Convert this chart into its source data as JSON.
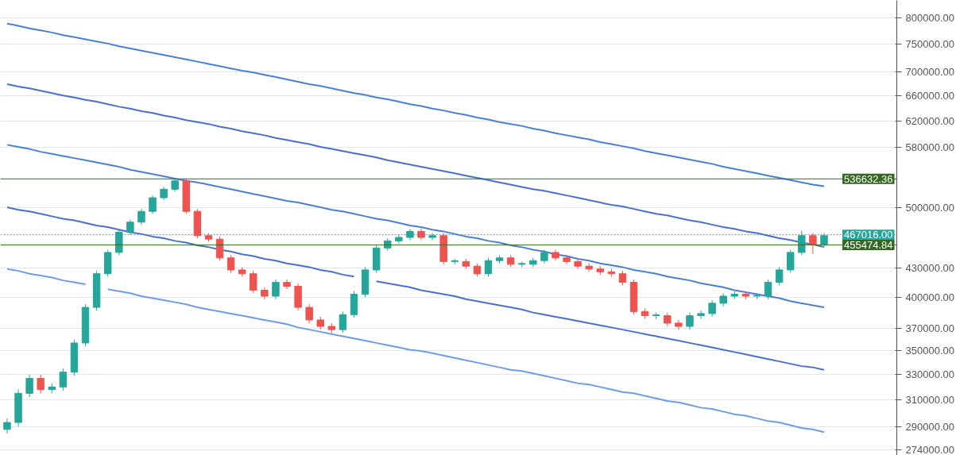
{
  "chart_data": {
    "type": "candlestick",
    "categories": [
      null,
      null,
      null,
      null,
      null,
      null,
      null,
      null,
      null,
      null,
      null,
      null,
      null,
      null,
      null,
      null,
      null,
      null,
      null,
      null,
      null,
      null,
      null,
      null,
      null,
      null,
      null,
      null,
      null,
      null,
      null,
      null,
      null,
      null,
      null,
      null,
      null,
      null,
      null,
      null,
      null,
      null,
      null,
      null,
      null,
      null,
      null,
      null,
      null,
      null,
      null,
      null,
      null,
      null,
      null,
      null,
      null,
      null,
      null,
      null,
      null,
      null,
      null,
      null,
      null,
      null,
      null,
      null,
      null,
      null,
      null,
      null,
      null,
      null
    ],
    "ohlc": [
      [
        288000,
        296000,
        285000,
        293000
      ],
      [
        293000,
        318000,
        290000,
        315000
      ],
      [
        315000,
        330000,
        312000,
        327000
      ],
      [
        327000,
        330000,
        315000,
        318000
      ],
      [
        318000,
        323000,
        315000,
        320000
      ],
      [
        320000,
        335000,
        317000,
        332000
      ],
      [
        332000,
        360000,
        329000,
        357000
      ],
      [
        357000,
        393000,
        354000,
        390000
      ],
      [
        390000,
        427000,
        387000,
        424000
      ],
      [
        424000,
        450000,
        421000,
        447000
      ],
      [
        447000,
        473000,
        444000,
        470000
      ],
      [
        470000,
        485000,
        467000,
        482000
      ],
      [
        482000,
        498000,
        479000,
        495000
      ],
      [
        495000,
        515000,
        492000,
        512000
      ],
      [
        512000,
        526000,
        509000,
        523000
      ],
      [
        523000,
        537000,
        520000,
        534000
      ],
      [
        534000,
        537000,
        492000,
        495000
      ],
      [
        495000,
        498000,
        463000,
        466000
      ],
      [
        466000,
        469000,
        459000,
        462000
      ],
      [
        462000,
        465000,
        438000,
        441000
      ],
      [
        441000,
        444000,
        425000,
        428000
      ],
      [
        428000,
        431000,
        421000,
        424000
      ],
      [
        424000,
        427000,
        404000,
        407000
      ],
      [
        407000,
        410000,
        398000,
        401000
      ],
      [
        401000,
        418000,
        398000,
        415000
      ],
      [
        415000,
        418000,
        408000,
        411000
      ],
      [
        411000,
        414000,
        387000,
        390000
      ],
      [
        390000,
        393000,
        375000,
        378000
      ],
      [
        378000,
        381000,
        369000,
        372000
      ],
      [
        372000,
        375000,
        366000,
        369000
      ],
      [
        369000,
        386000,
        366000,
        383000
      ],
      [
        383000,
        406000,
        380000,
        403000
      ],
      [
        403000,
        431000,
        400000,
        428000
      ],
      [
        428000,
        455000,
        425000,
        452000
      ],
      [
        452000,
        463000,
        449000,
        460000
      ],
      [
        460000,
        467000,
        457000,
        464000
      ],
      [
        464000,
        474000,
        461000,
        471000
      ],
      [
        471000,
        474000,
        461000,
        464000
      ],
      [
        464000,
        469000,
        461000,
        466000
      ],
      [
        466000,
        469000,
        434000,
        437000
      ],
      [
        437000,
        440000,
        434000,
        437000
      ],
      [
        437000,
        440000,
        429000,
        432000
      ],
      [
        432000,
        435000,
        421000,
        424000
      ],
      [
        424000,
        441000,
        421000,
        438000
      ],
      [
        438000,
        444000,
        435000,
        441000
      ],
      [
        441000,
        444000,
        431000,
        434000
      ],
      [
        434000,
        437000,
        431000,
        434000
      ],
      [
        434000,
        441000,
        431000,
        438000
      ],
      [
        438000,
        450000,
        435000,
        447000
      ],
      [
        447000,
        450000,
        438000,
        441000
      ],
      [
        441000,
        444000,
        434000,
        437000
      ],
      [
        437000,
        440000,
        429000,
        432000
      ],
      [
        432000,
        435000,
        426000,
        429000
      ],
      [
        429000,
        432000,
        423000,
        426000
      ],
      [
        426000,
        429000,
        421000,
        424000
      ],
      [
        424000,
        427000,
        412000,
        415000
      ],
      [
        415000,
        418000,
        383000,
        386000
      ],
      [
        386000,
        389000,
        379000,
        382000
      ],
      [
        382000,
        385000,
        379000,
        382000
      ],
      [
        382000,
        385000,
        372000,
        375000
      ],
      [
        375000,
        378000,
        369000,
        372000
      ],
      [
        372000,
        385000,
        369000,
        382000
      ],
      [
        382000,
        387000,
        379000,
        384000
      ],
      [
        384000,
        397000,
        381000,
        394000
      ],
      [
        394000,
        404000,
        391000,
        401000
      ],
      [
        401000,
        406000,
        398000,
        403000
      ],
      [
        403000,
        406000,
        398000,
        401000
      ],
      [
        401000,
        404000,
        398000,
        401000
      ],
      [
        401000,
        418000,
        398000,
        415000
      ],
      [
        415000,
        431000,
        412000,
        428000
      ],
      [
        428000,
        450000,
        425000,
        447000
      ],
      [
        447000,
        472000,
        444000,
        466000
      ],
      [
        466000,
        469000,
        445000,
        456000
      ],
      [
        456000,
        469000,
        453000,
        466000
      ]
    ],
    "colors": [
      "#26a69a",
      "#26a69a",
      "#26a69a",
      "#ef5350",
      "#26a69a",
      "#26a69a",
      "#26a69a",
      "#26a69a",
      "#26a69a",
      "#26a69a",
      "#26a69a",
      "#26a69a",
      "#26a69a",
      "#26a69a",
      "#26a69a",
      "#26a69a",
      "#ef5350",
      "#ef5350",
      "#ef5350",
      "#ef5350",
      "#ef5350",
      "#ef5350",
      "#ef5350",
      "#ef5350",
      "#26a69a",
      "#ef5350",
      "#ef5350",
      "#ef5350",
      "#ef5350",
      "#ef5350",
      "#26a69a",
      "#26a69a",
      "#26a69a",
      "#26a69a",
      "#26a69a",
      "#26a69a",
      "#26a69a",
      "#ef5350",
      "#26a69a",
      "#ef5350",
      "#26a69a",
      "#ef5350",
      "#ef5350",
      "#26a69a",
      "#26a69a",
      "#ef5350",
      "#26a69a",
      "#26a69a",
      "#26a69a",
      "#ef5350",
      "#ef5350",
      "#ef5350",
      "#ef5350",
      "#ef5350",
      "#ef5350",
      "#ef5350",
      "#ef5350",
      "#ef5350",
      "#26a69a",
      "#ef5350",
      "#ef5350",
      "#26a69a",
      "#26a69a",
      "#26a69a",
      "#26a69a",
      "#26a69a",
      "#ef5350",
      "#26a69a",
      "#26a69a",
      "#26a69a",
      "#26a69a",
      "#26a69a",
      "#ef5350",
      "#26a69a"
    ],
    "series": [
      {
        "type": "line",
        "color": "#4a7fd8",
        "values": [
          789000,
          785000,
          780000,
          776000,
          772000,
          767000,
          763000,
          759000,
          755000,
          751000,
          746000,
          742000,
          738000,
          734000,
          730000,
          726000,
          722000,
          718000,
          714000,
          710000,
          706000,
          702000,
          699000,
          695000,
          691000,
          687000,
          683000,
          679000,
          676000,
          672000,
          668000,
          664000,
          661000,
          657000,
          654000,
          650000,
          646000,
          643000,
          639000,
          636000,
          632000,
          629000,
          625000,
          622000,
          618000,
          615000,
          612000,
          608000,
          605000,
          601000,
          598000,
          595000,
          592000,
          588000,
          585000,
          582000,
          579000,
          575000,
          572000,
          569000,
          566000,
          563000,
          560000,
          557000,
          553000,
          550000,
          547000,
          544000,
          541000,
          538000,
          535000,
          532000,
          529000,
          527000
        ]
      },
      {
        "type": "line",
        "color": "#4a6fd0",
        "values": [
          679000,
          675000,
          672000,
          668000,
          664000,
          660000,
          657000,
          653000,
          650000,
          646000,
          642000,
          639000,
          635000,
          632000,
          628000,
          625000,
          621000,
          618000,
          615000,
          611000,
          608000,
          604000,
          601000,
          598000,
          594000,
          591000,
          588000,
          585000,
          581000,
          578000,
          575000,
          572000,
          569000,
          566000,
          562000,
          559000,
          556000,
          553000,
          550000,
          547000,
          544000,
          541000,
          538000,
          535000,
          532000,
          529000,
          526000,
          523000,
          521000,
          518000,
          515000,
          512000,
          509000,
          506000,
          503000,
          501000,
          498000,
          495000,
          492000,
          490000,
          487000,
          484000,
          482000,
          479000,
          476000,
          474000,
          471000,
          469000,
          466000,
          463000,
          461000,
          458000,
          456000,
          453000
        ]
      },
      {
        "type": "line",
        "color": "#4a7fd8",
        "values": [
          584000,
          581000,
          578000,
          574000,
          571000,
          568000,
          565000,
          562000,
          559000,
          556000,
          553000,
          549000,
          546000,
          543000,
          540000,
          537000,
          534000,
          532000,
          529000,
          526000,
          523000,
          520000,
          517000,
          514000,
          511000,
          508000,
          506000,
          503000,
          500000,
          497000,
          495000,
          492000,
          489000,
          486000,
          484000,
          481000,
          478000,
          476000,
          473000,
          471000,
          468000,
          465000,
          463000,
          460000,
          458000,
          455000,
          453000,
          450000,
          448000,
          445000,
          443000,
          440000,
          438000,
          435000,
          433000,
          431000,
          428000,
          426000,
          424000,
          421000,
          419000,
          417000,
          414000,
          412000,
          410000,
          407000,
          405000,
          403000,
          401000,
          399000,
          396000,
          394000,
          392000,
          390000
        ]
      },
      {
        "type": "line",
        "color": "#4a6fd0",
        "values": [
          500000,
          497000,
          495000,
          492000,
          489000,
          486000,
          484000,
          481000,
          478000,
          476000,
          473000,
          470000,
          468000,
          465000,
          463000,
          460000,
          458000,
          455000,
          453000,
          450000,
          448000,
          445000,
          443000,
          440000,
          438000,
          435000,
          433000,
          431000,
          428000,
          426000,
          423000,
          421000,
          null,
          416000,
          414000,
          412000,
          410000,
          407000,
          405000,
          403000,
          401000,
          398000,
          396000,
          394000,
          392000,
          390000,
          388000,
          385000,
          383000,
          381000,
          379000,
          377000,
          375000,
          373000,
          371000,
          369000,
          367000,
          365000,
          363000,
          361000,
          359000,
          357000,
          355000,
          353000,
          351000,
          349000,
          347000,
          345000,
          343000,
          341000,
          339000,
          337000,
          336000,
          334000
        ]
      },
      {
        "type": "line",
        "color": "#6f9ce8",
        "values": [
          429000,
          427000,
          424000,
          422000,
          420000,
          417000,
          415000,
          413000,
          null,
          408000,
          406000,
          404000,
          401000,
          399000,
          397000,
          395000,
          393000,
          390000,
          388000,
          386000,
          384000,
          382000,
          380000,
          378000,
          376000,
          374000,
          371000,
          369000,
          367000,
          365000,
          363000,
          361000,
          359000,
          357000,
          355000,
          353000,
          351000,
          350000,
          348000,
          346000,
          344000,
          342000,
          340000,
          338000,
          336000,
          334000,
          333000,
          331000,
          329000,
          327000,
          325000,
          323000,
          322000,
          320000,
          318000,
          316000,
          315000,
          313000,
          311000,
          309000,
          308000,
          306000,
          304000,
          303000,
          301000,
          299000,
          298000,
          296000,
          294000,
          293000,
          291000,
          289000,
          288000,
          286000
        ]
      }
    ],
    "ref_lines": [
      {
        "axis": "y",
        "value": 536632.36,
        "label": "536632.36",
        "color": "#33691e",
        "line_style": "solid"
      },
      {
        "axis": "y",
        "value": 467016,
        "label": "467016.00",
        "color": "#26a69a",
        "line_style": "dotted"
      },
      {
        "axis": "y",
        "value": 455474.84,
        "label": "455474.84",
        "color": "#33691e",
        "line_style": "solid"
      }
    ],
    "log": true,
    "grid": "y",
    "tick_labels": "y",
    "ylim": [
      270000,
      836000
    ],
    "yticks": [
      {
        "value": 800000,
        "label": "800000.00"
      },
      {
        "value": 750000,
        "label": "750000.00"
      },
      {
        "value": 700000,
        "label": "700000.00"
      },
      {
        "value": 660000,
        "label": "660000.00"
      },
      {
        "value": 620000,
        "label": "620000.00"
      },
      {
        "value": 580000,
        "label": "580000.00"
      },
      {
        "value": 500000,
        "label": "500000.00"
      },
      {
        "value": 430000,
        "label": "430000.00"
      },
      {
        "value": 400000,
        "label": "400000.00"
      },
      {
        "value": 370000,
        "label": "370000.00"
      },
      {
        "value": 350000,
        "label": "350000.00"
      },
      {
        "value": 330000,
        "label": "330000.00"
      },
      {
        "value": 310000,
        "label": "310000.00"
      },
      {
        "value": 290000,
        "label": "290000.00"
      },
      {
        "value": 274000,
        "label": "274000.00"
      }
    ]
  }
}
